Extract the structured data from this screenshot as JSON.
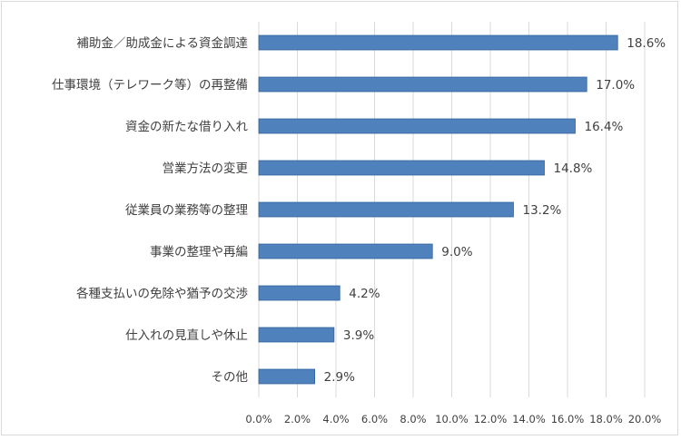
{
  "chart_data": {
    "type": "bar",
    "orientation": "horizontal",
    "categories": [
      "補助金／助成金による資金調達",
      "仕事環境（テレワーク等）の再整備",
      "資金の新たな借り入れ",
      "営業方法の変更",
      "従業員の業務等の整理",
      "事業の整理や再編",
      "各種支払いの免除や猶予の交渉",
      "仕入れの見直しや休止",
      "その他"
    ],
    "values": [
      18.6,
      17.0,
      16.4,
      14.8,
      13.2,
      9.0,
      4.2,
      3.9,
      2.9
    ],
    "value_labels": [
      "18.6%",
      "17.0%",
      "16.4%",
      "14.8%",
      "13.2%",
      "9.0%",
      "4.2%",
      "3.9%",
      "2.9%"
    ],
    "xlim": [
      0,
      20
    ],
    "x_ticks": [
      "0.0%",
      "2.0%",
      "4.0%",
      "6.0%",
      "8.0%",
      "10.0%",
      "12.0%",
      "14.0%",
      "16.0%",
      "18.0%",
      "20.0%"
    ],
    "grid": "vertical",
    "legend": "none",
    "bar_color": "#4f81bd",
    "bar_border_color": "#2f5f9a",
    "grid_color": "#d9d9d9",
    "text_color": "#404040"
  }
}
